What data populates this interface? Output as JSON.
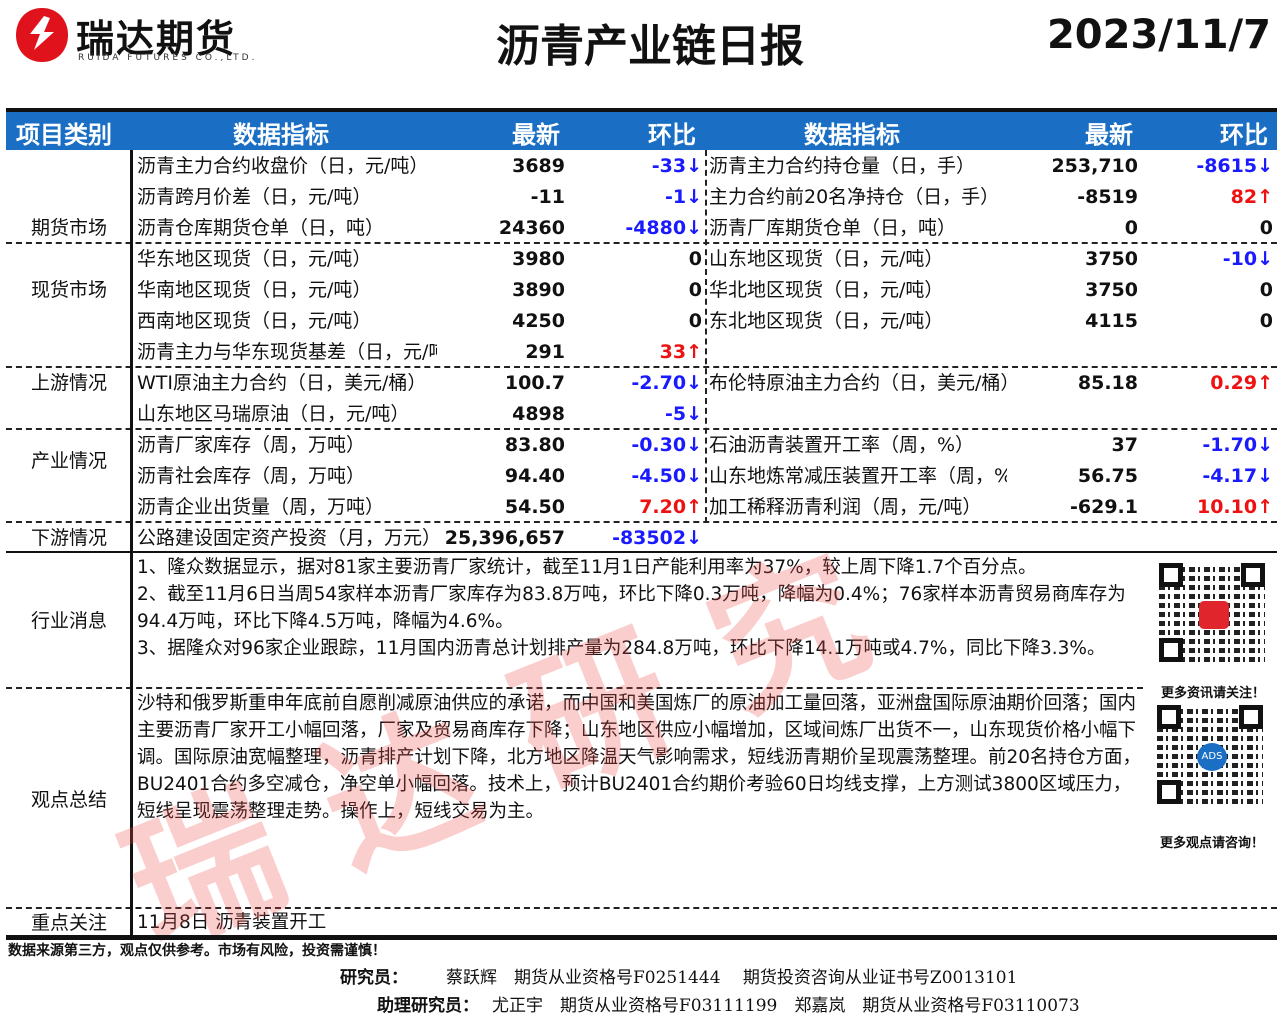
{
  "header": {
    "company_cn": "瑞达期货",
    "company_en": "RUIDA FUTURES CO.,LTD.",
    "title": "沥青产业链日报",
    "date": "2023/11/7"
  },
  "columns": {
    "category": "项目类别",
    "indicator": "数据指标",
    "latest": "最新",
    "change": "环比",
    "indicator2": "数据指标",
    "latest2": "最新",
    "change2": "环比"
  },
  "colors": {
    "header_bg": "#1a6fc4",
    "down": "#1a1aff",
    "up": "#ee1111"
  },
  "categories": [
    "期货市场",
    "现货市场",
    "上游情况",
    "产业情况",
    "下游情况",
    "行业消息",
    "观点总结",
    "重点关注"
  ],
  "rows": [
    {
      "l": [
        "沥青主力合约收盘价（日，元/吨）",
        "3689",
        "-33↓",
        "dn"
      ],
      "r": [
        "沥青主力合约持仓量（日，手）",
        "253,710",
        "-8615↓",
        "dn"
      ]
    },
    {
      "l": [
        "沥青跨月价差（日，元/吨）",
        "-11",
        "-1↓",
        "dn"
      ],
      "r": [
        "主力合约前20名净持仓（日，手）",
        "-8519",
        "82↑",
        "up"
      ]
    },
    {
      "l": [
        "沥青仓库期货仓单（日，吨）",
        "24360",
        "-4880↓",
        "dn"
      ],
      "r": [
        "沥青厂库期货仓单（日，吨）",
        "0",
        "0",
        "zero"
      ]
    },
    {
      "l": [
        "华东地区现货（日，元/吨）",
        "3980",
        "0",
        "zero"
      ],
      "r": [
        "山东地区现货（日，元/吨）",
        "3750",
        "-10↓",
        "dn"
      ]
    },
    {
      "l": [
        "华南地区现货（日，元/吨）",
        "3890",
        "0",
        "zero"
      ],
      "r": [
        "华北地区现货（日，元/吨）",
        "3750",
        "0",
        "zero"
      ]
    },
    {
      "l": [
        "西南地区现货（日，元/吨）",
        "4250",
        "0",
        "zero"
      ],
      "r": [
        "东北地区现货（日，元/吨）",
        "4115",
        "0",
        "zero"
      ]
    },
    {
      "l": [
        "沥青主力与华东现货基差（日，元/吨）",
        "291",
        "33↑",
        "up"
      ],
      "r": null
    },
    {
      "l": [
        "WTI原油主力合约（日，美元/桶）",
        "100.7",
        "-2.70↓",
        "dn"
      ],
      "r": [
        "布伦特原油主力合约（日，美元/桶）",
        "85.18",
        "0.29↑",
        "up"
      ]
    },
    {
      "l": [
        "山东地区马瑞原油（日，元/吨）",
        "4898",
        "-5↓",
        "dn"
      ],
      "r": null
    },
    {
      "l": [
        "沥青厂家库存（周，万吨）",
        "83.80",
        "-0.30↓",
        "dn"
      ],
      "r": [
        "石油沥青装置开工率（周，%）",
        "37",
        "-1.70↓",
        "dn"
      ]
    },
    {
      "l": [
        "沥青社会库存（周，万吨）",
        "94.40",
        "-4.50↓",
        "dn"
      ],
      "r": [
        "山东地炼常减压装置开工率（周，%）",
        "56.75",
        "-4.17↓",
        "dn"
      ]
    },
    {
      "l": [
        "沥青企业出货量（周，万吨）",
        "54.50",
        "7.20↑",
        "up"
      ],
      "r": [
        "加工稀释沥青利润（周，元/吨）",
        "-629.1",
        "10.10↑",
        "up"
      ]
    },
    {
      "l": [
        "公路建设固定资产投资（月，万元）",
        "25,396,657",
        "-83502↓",
        "dn"
      ],
      "r": null
    }
  ],
  "news": [
    "1、隆众数据显示，据对81家主要沥青厂家统计，截至11月1日产能利用率为37%，较上周下降1.7个百分点。",
    "2、截至11月6日当周54家样本沥青厂家库存为83.8万吨，环比下降0.3万吨，降幅为0.4%；76家样本沥青贸易商库存为94.4万吨，环比下降4.5万吨，降幅为4.6%。",
    "3、据隆众对96家企业跟踪，11月国内沥青总计划排产量为284.8万吨，环比下降14.1万吨或4.7%，同比下降3.3%。"
  ],
  "summary": "沙特和俄罗斯重申年底前自愿削减原油供应的承诺，而中国和美国炼厂的原油加工量回落，亚洲盘国际原油期价回落；国内主要沥青厂家开工小幅回落，厂家及贸易商库存下降；山东地区供应小幅增加，区域间炼厂出货不一，山东现货价格小幅下调。国际原油宽幅整理，沥青排产计划下降，北方地区降温天气影响需求，短线沥青期价呈现震荡整理。前20名持仓方面，BU2401合约多空减仓，净空单小幅回落。技术上，预计BU2401合约期价考验60日均线支撑，上方测试3800区域压力，短线呈现震荡整理走势。操作上，短线交易为主。",
  "focus": "11月8日 沥青装置开工",
  "qr": {
    "caption1": "更多资讯请关注！",
    "caption2": "更多观点请咨询！",
    "logo2": "ADS"
  },
  "watermark": "瑞达研究",
  "footer": {
    "disclaimer": "数据来源第三方，观点仅供参考。市场有风险，投资需谨慎！",
    "researcher_label": "研究员：",
    "researcher": "蔡跃辉　期货从业资格号F0251444　 期货投资咨询从业证书号Z0013101",
    "assistant_label": "助理研究员：",
    "assistant": "尤正宇　期货从业资格号F03111199　郑嘉岚　期货从业资格号F03110073"
  }
}
